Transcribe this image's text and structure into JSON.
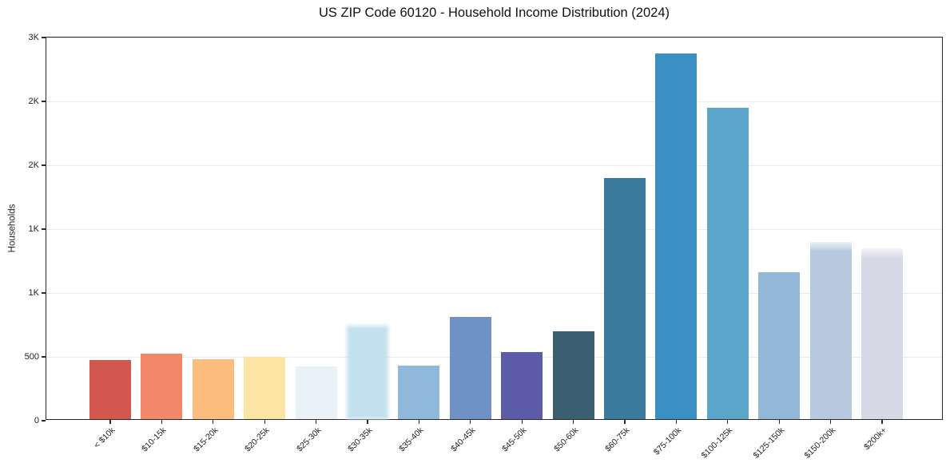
{
  "chart_data": {
    "type": "bar",
    "title": "US ZIP Code 60120 - Household Income Distribution (2024)",
    "xlabel": "",
    "ylabel": "Households",
    "ylim": [
      0,
      3000
    ],
    "grid": "horizontal-only",
    "legend": "none",
    "ytick_values": [
      0,
      500,
      1000,
      1500,
      2000,
      2500,
      3000
    ],
    "ytick_labels": [
      "0",
      "500",
      "1K",
      "1K",
      "2K",
      "2K",
      "3K"
    ],
    "categories": [
      "< $10k",
      "$10-15k",
      "$15-20k",
      "$20-25k",
      "$25-30k",
      "$30-35k",
      "$35-40k",
      "$40-45k",
      "$45-50k",
      "$50-60k",
      "$60-75k",
      "$75-100k",
      "$100-125k",
      "$125-150k",
      "$150-200k",
      "$200k+"
    ],
    "values": [
      465,
      510,
      470,
      485,
      410,
      730,
      420,
      800,
      525,
      685,
      1885,
      2860,
      2435,
      1150,
      1385,
      1340
    ],
    "bar_colors": [
      "#d4574f",
      "#f2876a",
      "#fbbc7d",
      "#fce4a4",
      "#e9f2f6",
      "#c3e1ee",
      "#8fb8da",
      "#6e92c5",
      "#5c5ba7",
      "#3b5f70",
      "#397a9d",
      "#3a90c2",
      "#5ba4ca",
      "#93b7d6",
      "#b7c9df",
      "#d7dae6"
    ],
    "soft_blur_bar_indices": [
      5
    ],
    "soft_top_bar_indices": [
      14,
      15
    ],
    "colors": {
      "background": "#ffffff",
      "spine": "#2a2a2a",
      "gridline": "#e9e9ee",
      "text": "#1c1c1c"
    }
  }
}
